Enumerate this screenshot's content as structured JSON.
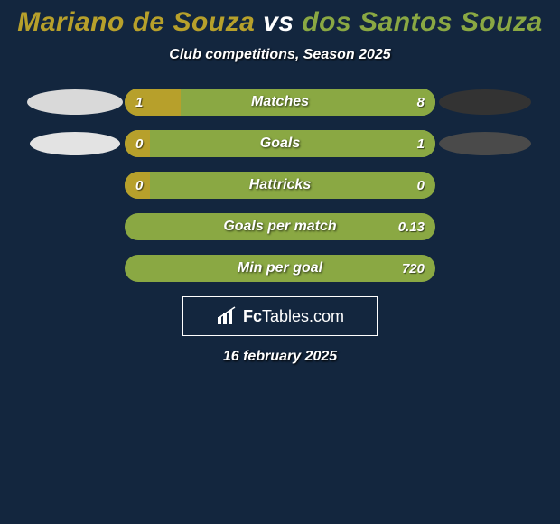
{
  "background_color": "#13263e",
  "title": {
    "player1": "Mariano de Souza",
    "vs_text": "vs",
    "player2": "dos Santos Souza",
    "player1_color": "#b7a02b",
    "vs_color": "#ffffff",
    "player2_color": "#8aa843",
    "fontsize": 30
  },
  "subtitle": "Club competitions, Season 2025",
  "colors": {
    "left_bar": "#b7a02b",
    "right_bar": "#8aa843",
    "track_default": "#8aa843",
    "text": "#ffffff"
  },
  "side_badges": {
    "left1": {
      "width": 106,
      "height": 28,
      "color": "#d9d9d9"
    },
    "left2": {
      "width": 100,
      "height": 26,
      "color": "#e3e3e3"
    },
    "right1": {
      "width": 102,
      "height": 28,
      "color": "#333333"
    },
    "right2": {
      "width": 102,
      "height": 26,
      "color": "#4a4a4a"
    }
  },
  "stats": [
    {
      "label": "Matches",
      "left_value": "1",
      "right_value": "8",
      "left_pct": 18,
      "right_pct": 82,
      "show_left_badge": true,
      "show_right_badge": true,
      "track_color": "#8aa843"
    },
    {
      "label": "Goals",
      "left_value": "0",
      "right_value": "1",
      "left_pct": 8,
      "right_pct": 92,
      "show_left_badge": true,
      "show_right_badge": true,
      "track_color": "#8aa843"
    },
    {
      "label": "Hattricks",
      "left_value": "0",
      "right_value": "0",
      "left_pct": 8,
      "right_pct": 0,
      "show_left_badge": false,
      "show_right_badge": false,
      "track_color": "#8aa843"
    },
    {
      "label": "Goals per match",
      "left_value": "",
      "right_value": "0.13",
      "left_pct": 0,
      "right_pct": 100,
      "show_left_badge": false,
      "show_right_badge": false,
      "track_color": "#8aa843"
    },
    {
      "label": "Min per goal",
      "left_value": "",
      "right_value": "720",
      "left_pct": 0,
      "right_pct": 100,
      "show_left_badge": false,
      "show_right_badge": false,
      "track_color": "#8aa843"
    }
  ],
  "logo": {
    "brand_bold": "Fc",
    "brand_rest": "Tables",
    "brand_suffix": ".com"
  },
  "date": "16 february 2025"
}
